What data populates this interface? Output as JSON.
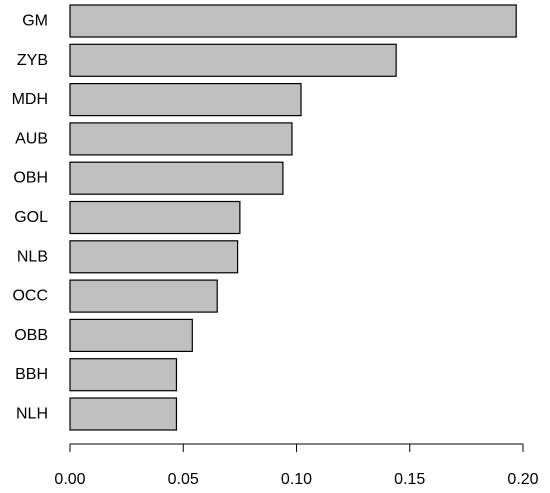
{
  "chart_data": {
    "type": "bar",
    "orientation": "horizontal",
    "categories": [
      "GM",
      "ZYB",
      "MDH",
      "AUB",
      "OBH",
      "GOL",
      "NLB",
      "OCC",
      "OBB",
      "BBH",
      "NLH"
    ],
    "values": [
      0.197,
      0.144,
      0.102,
      0.098,
      0.094,
      0.075,
      0.074,
      0.065,
      0.054,
      0.047,
      0.047
    ],
    "xticks": [
      "0.00",
      "0.05",
      "0.10",
      "0.15",
      "0.20"
    ],
    "xlim": [
      0,
      0.2
    ],
    "title": "",
    "xlabel": "",
    "ylabel": "",
    "bar_color": "#c0c0c0",
    "grid": false,
    "legend": "none"
  }
}
